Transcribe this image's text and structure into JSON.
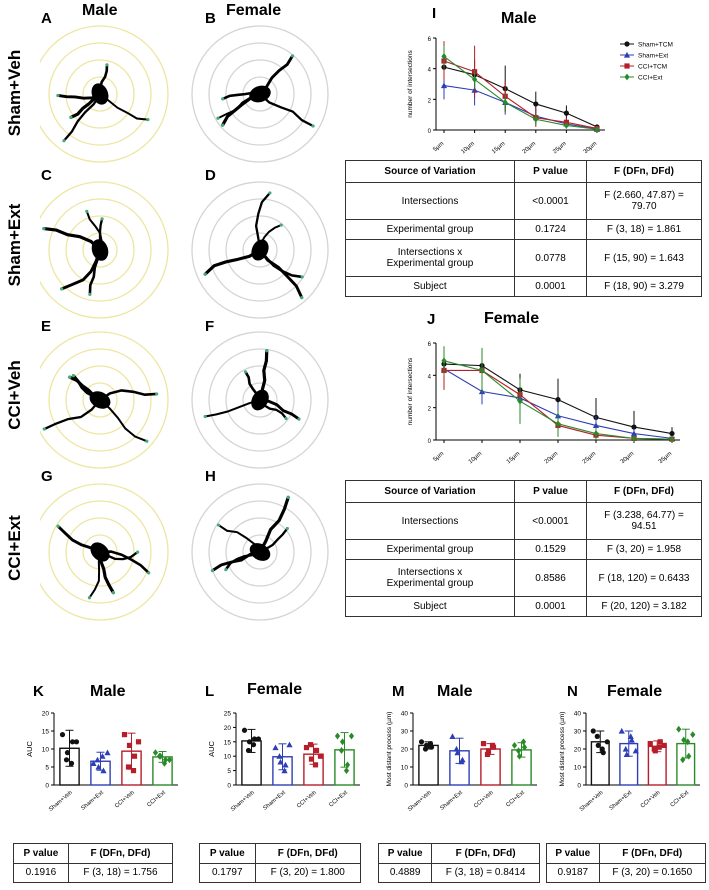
{
  "colors": {
    "sham_tcm": "#111111",
    "sham_ext": "#2e3fb5",
    "cci_tcm": "#b51e2a",
    "cci_ext": "#2a8a2a",
    "sholl_ring": "#c9c9c9",
    "sholl_ring_yellow": "#e8e08a"
  },
  "cells": {
    "titles": {
      "male": "Male",
      "female": "Female"
    },
    "letters": {
      "A": "A",
      "B": "B",
      "C": "C",
      "D": "D",
      "E": "E",
      "F": "F",
      "G": "G",
      "H": "H"
    },
    "rows": [
      "Sham+Veh",
      "Sham+Ext",
      "CCI+Veh",
      "CCI+Ext"
    ]
  },
  "panel_I": {
    "letter": "I",
    "title": "Male"
  },
  "panel_J": {
    "letter": "J",
    "title": "Female"
  },
  "table_I": {
    "headers": [
      "Source of Variation",
      "P value",
      "F (DFn, DFd)"
    ],
    "rows": [
      {
        "source": "Intersections",
        "p": "<0.0001",
        "f": "F (2.660, 47.87) = 79.70"
      },
      {
        "source": "Experimental group",
        "p": "0.1724",
        "f": "F (3, 18) = 1.861"
      },
      {
        "source": "Intersections x",
        "source2": "Experimental group",
        "p": "0.0778",
        "f": "F (15, 90) = 1.643"
      },
      {
        "source": "Subject",
        "p": "0.0001",
        "f": "F (18, 90) = 3.279"
      }
    ]
  },
  "table_J": {
    "headers": [
      "Source of Variation",
      "P value",
      "F (DFn, DFd)"
    ],
    "rows": [
      {
        "source": "Intersections",
        "p": "<0.0001",
        "f": "F (3.238, 64.77) = 94.51"
      },
      {
        "source": "Experimental group",
        "p": "0.1529",
        "f": "F (3, 20) = 1.958"
      },
      {
        "source": "Intersections x",
        "source2": "Experimental group",
        "p": "0.8586",
        "f": "F (18, 120) = 0.6433"
      },
      {
        "source": "Subject",
        "p": "0.0001",
        "f": "F (20, 120) = 3.182"
      }
    ]
  },
  "bottom": {
    "K": {
      "letter": "K",
      "title": "Male"
    },
    "L": {
      "letter": "L",
      "title": "Female"
    },
    "M": {
      "letter": "M",
      "title": "Male"
    },
    "N": {
      "letter": "N",
      "title": "Female"
    }
  },
  "small_tables": [
    {
      "h1": "P value",
      "h2": "F (DFn, DFd)",
      "p": "0.1916",
      "f": "F (3, 18) = 1.756"
    },
    {
      "h1": "P value",
      "h2": "F (DFn, DFd)",
      "p": "0.1797",
      "f": "F (3, 20) = 1.800"
    },
    {
      "h1": "P value",
      "h2": "F (DFn, DFd)",
      "p": "0.4889",
      "f": "F (3, 18) = 0.8414"
    },
    {
      "h1": "P value",
      "h2": "F (DFn, DFd)",
      "p": "0.9187",
      "f": "F (3, 20) = 0.1650"
    }
  ],
  "chart_data": [
    {
      "id": "I",
      "type": "line",
      "title": "Male",
      "ylabel": "number of intersections",
      "xlabel": "",
      "x": [
        "5µm",
        "10µm",
        "15µm",
        "20µm",
        "25µm",
        "30µm"
      ],
      "ylim": [
        0,
        6
      ],
      "yticks": [
        0,
        2,
        4,
        6
      ],
      "legend": "top-right",
      "series": [
        {
          "name": "Sham+TCM",
          "color": "#111111",
          "marker": "circle",
          "values": [
            4.1,
            3.6,
            2.7,
            1.7,
            1.1,
            0.2
          ],
          "err": [
            0.8,
            1.0,
            1.5,
            0.8,
            0.5,
            0.1
          ]
        },
        {
          "name": "Sham+Ext",
          "color": "#2e3fb5",
          "marker": "triangle",
          "values": [
            2.9,
            2.6,
            1.8,
            0.9,
            0.4,
            0.05
          ],
          "err": [
            0.9,
            1.0,
            0.8,
            0.5,
            0.3,
            0.05
          ]
        },
        {
          "name": "CCI+TCM",
          "color": "#b51e2a",
          "marker": "square",
          "values": [
            4.5,
            3.8,
            2.2,
            0.8,
            0.5,
            0.1
          ],
          "err": [
            1.3,
            1.7,
            1.0,
            0.6,
            0.3,
            0.05
          ]
        },
        {
          "name": "CCI+Ext",
          "color": "#2a8a2a",
          "marker": "diamond",
          "values": [
            4.8,
            3.3,
            1.8,
            0.7,
            0.3,
            0.05
          ],
          "err": [
            0.7,
            0.6,
            0.6,
            0.4,
            0.2,
            0.05
          ]
        }
      ]
    },
    {
      "id": "J",
      "type": "line",
      "title": "Female",
      "ylabel": "number of intersections",
      "xlabel": "",
      "x": [
        "5µm",
        "10µm",
        "15µm",
        "20µm",
        "25µm",
        "30µm",
        "35µm"
      ],
      "ylim": [
        0,
        6
      ],
      "yticks": [
        0,
        2,
        4,
        6
      ],
      "series": [
        {
          "name": "Sham+TCM",
          "color": "#111111",
          "marker": "circle",
          "values": [
            4.7,
            4.6,
            3.1,
            2.5,
            1.4,
            0.8,
            0.4
          ],
          "err": [
            0.8,
            0.9,
            1.0,
            1.3,
            1.2,
            1.0,
            0.4
          ]
        },
        {
          "name": "Sham+Ext",
          "color": "#2e3fb5",
          "marker": "triangle",
          "values": [
            4.4,
            3.0,
            2.6,
            1.5,
            0.9,
            0.4,
            0.1
          ],
          "err": [
            1.0,
            0.8,
            0.9,
            0.8,
            0.6,
            0.3,
            0.1
          ]
        },
        {
          "name": "CCI+TCM",
          "color": "#b51e2a",
          "marker": "square",
          "values": [
            4.3,
            4.3,
            2.8,
            0.9,
            0.3,
            0.1,
            0.05
          ],
          "err": [
            1.2,
            1.3,
            1.0,
            0.7,
            0.3,
            0.1,
            0.05
          ]
        },
        {
          "name": "CCI+Ext",
          "color": "#2a8a2a",
          "marker": "diamond",
          "values": [
            4.9,
            4.3,
            2.4,
            1.0,
            0.4,
            0.1,
            0.05
          ],
          "err": [
            0.9,
            1.4,
            1.4,
            0.8,
            0.4,
            0.1,
            0.05
          ]
        }
      ]
    },
    {
      "id": "K",
      "type": "bar",
      "title": "Male",
      "ylabel": "AUC",
      "categories": [
        "Sham+Veh",
        "Sham+Ext",
        "CCI+Veh",
        "CCI+Ext"
      ],
      "values": [
        10.2,
        6.6,
        9.4,
        7.8
      ],
      "err": [
        5.0,
        2.5,
        5.0,
        1.5
      ],
      "ylim": [
        0,
        20
      ],
      "yticks": [
        0,
        5,
        10,
        15,
        20
      ],
      "points": [
        [
          14,
          9,
          12,
          7,
          6,
          12
        ],
        [
          6,
          5,
          4,
          7,
          8,
          9
        ],
        [
          14,
          11,
          8,
          5,
          4,
          12
        ],
        [
          9,
          8,
          7,
          8,
          6,
          7
        ]
      ]
    },
    {
      "id": "L",
      "type": "bar",
      "title": "Female",
      "ylabel": "AUC",
      "categories": [
        "Sham+Veh",
        "Sham+Ext",
        "CCI+Veh",
        "CCI+Ext"
      ],
      "values": [
        15.3,
        9.8,
        10.7,
        12.2
      ],
      "err": [
        4.0,
        4.5,
        3.5,
        6.0
      ],
      "ylim": [
        0,
        25
      ],
      "yticks": [
        0,
        5,
        10,
        15,
        20,
        25
      ],
      "points": [
        [
          19,
          15,
          16,
          12,
          14,
          16
        ],
        [
          13,
          8,
          7,
          10,
          5,
          14
        ],
        [
          13,
          9,
          12,
          14,
          7,
          10
        ],
        [
          17,
          15,
          7,
          12,
          5,
          17
        ]
      ]
    },
    {
      "id": "M",
      "type": "bar",
      "title": "Male",
      "ylabel": "Most distant process (µm)",
      "categories": [
        "Sham+Veh",
        "Sham+Ext",
        "CCI+Veh",
        "CCI+Ext"
      ],
      "values": [
        22.0,
        19.0,
        20.0,
        19.5
      ],
      "err": [
        2.0,
        7.0,
        3.0,
        4.0
      ],
      "ylim": [
        0,
        40
      ],
      "yticks": [
        0,
        10,
        20,
        30,
        40
      ],
      "points": [
        [
          24,
          22,
          21,
          20,
          23
        ],
        [
          27,
          18,
          14,
          20,
          13
        ],
        [
          23,
          19,
          21,
          17,
          22
        ],
        [
          22,
          16,
          21,
          19,
          24
        ]
      ]
    },
    {
      "id": "N",
      "type": "bar",
      "title": "Female",
      "ylabel": "Most distant process (µm)",
      "categories": [
        "Sham+Veh",
        "Sham+Ext",
        "CCI+Veh",
        "CCI+Ext"
      ],
      "values": [
        24.0,
        23.0,
        21.5,
        23.0
      ],
      "err": [
        6.0,
        7.0,
        3.0,
        8.0
      ],
      "ylim": [
        0,
        40
      ],
      "yticks": [
        0,
        10,
        20,
        30,
        40
      ],
      "points": [
        [
          30,
          22,
          18,
          27,
          20,
          24
        ],
        [
          30,
          17,
          25,
          20,
          27,
          19
        ],
        [
          23,
          19,
          24,
          20,
          21,
          22
        ],
        [
          31,
          25,
          16,
          14,
          24,
          28
        ]
      ]
    }
  ]
}
